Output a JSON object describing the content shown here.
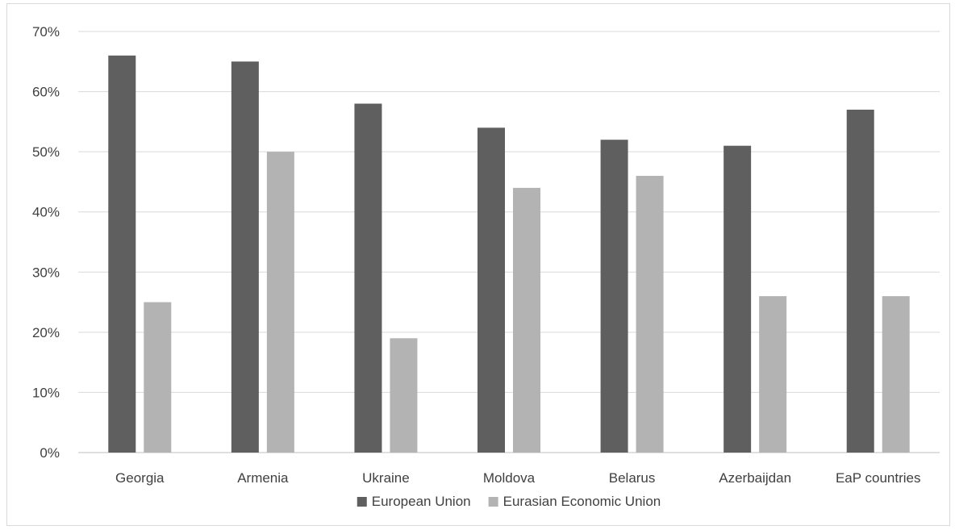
{
  "chart_data": {
    "type": "bar",
    "categories": [
      "Georgia",
      "Armenia",
      "Ukraine",
      "Moldova",
      "Belarus",
      "Azerbaijdan",
      "EaP countries"
    ],
    "series": [
      {
        "name": "European Union",
        "values": [
          66,
          65,
          58,
          54,
          52,
          51,
          57
        ],
        "color": "#5f5f5f"
      },
      {
        "name": "Eurasian Economic Union",
        "values": [
          25,
          50,
          19,
          44,
          46,
          26,
          26
        ],
        "color": "#b3b3b3"
      }
    ],
    "y_ticks": [
      "0%",
      "10%",
      "20%",
      "30%",
      "40%",
      "50%",
      "60%",
      "70%"
    ],
    "ylim": [
      0,
      70
    ],
    "y_unit": "%",
    "grid": true,
    "legend_position": "bottom",
    "title": "",
    "xlabel": "",
    "ylabel": ""
  }
}
